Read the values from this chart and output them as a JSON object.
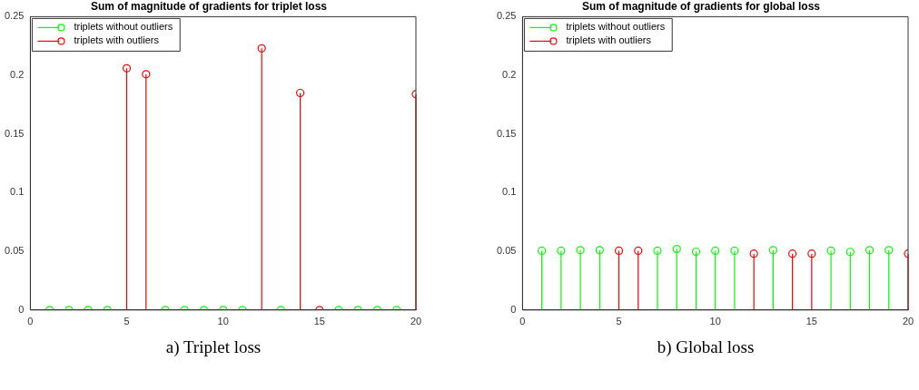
{
  "chart_data": [
    {
      "type": "lollipop",
      "title": "Sum of magnitude of gradients for triplet loss",
      "annotations": [
        "a) Triplet loss"
      ],
      "xlim": [
        0,
        20
      ],
      "xticks": [
        0,
        5,
        10,
        15,
        20
      ],
      "ylim": [
        0,
        0.25
      ],
      "yticks": [
        0,
        0.05,
        0.1,
        0.15,
        0.2,
        0.25
      ],
      "grid": false,
      "legend": "top left",
      "marker": "circle",
      "line_style": "solid",
      "series": [
        {
          "name": "triplets without outliers",
          "color": "#00ff00",
          "x": [
            1,
            2,
            3,
            4,
            7,
            8,
            9,
            10,
            11,
            13,
            16,
            17,
            18,
            19
          ],
          "values": [
            0,
            0,
            0,
            0,
            0,
            0,
            0,
            0,
            0,
            0,
            0,
            0,
            0,
            0
          ]
        },
        {
          "name": "triplets with outliers",
          "color": "#ff0000",
          "x": [
            5,
            6,
            12,
            14,
            15,
            20
          ],
          "values": [
            0.206,
            0.201,
            0.223,
            0.185,
            0,
            0.184
          ]
        }
      ]
    },
    {
      "type": "lollipop",
      "title": "Sum of magnitude of gradients for global loss",
      "annotations": [
        "b) Global loss"
      ],
      "xlim": [
        0,
        20
      ],
      "xticks": [
        0,
        5,
        10,
        15,
        20
      ],
      "ylim": [
        0,
        0.25
      ],
      "yticks": [
        0,
        0.05,
        0.1,
        0.15,
        0.2,
        0.25
      ],
      "grid": false,
      "legend": "top left",
      "marker": "circle",
      "line_style": "solid",
      "series": [
        {
          "name": "triplets without outliers",
          "color": "#00ff00",
          "x": [
            1,
            2,
            3,
            4,
            7,
            8,
            9,
            10,
            11,
            13,
            16,
            17,
            18,
            19
          ],
          "values": [
            0.0505,
            0.0505,
            0.051,
            0.051,
            0.0505,
            0.052,
            0.0497,
            0.0505,
            0.0505,
            0.051,
            0.0505,
            0.0495,
            0.051,
            0.051
          ]
        },
        {
          "name": "triplets with outliers",
          "color": "#ff0000",
          "x": [
            5,
            6,
            12,
            14,
            15,
            20
          ],
          "values": [
            0.0505,
            0.0505,
            0.048,
            0.048,
            0.048,
            0.048
          ]
        }
      ]
    }
  ]
}
